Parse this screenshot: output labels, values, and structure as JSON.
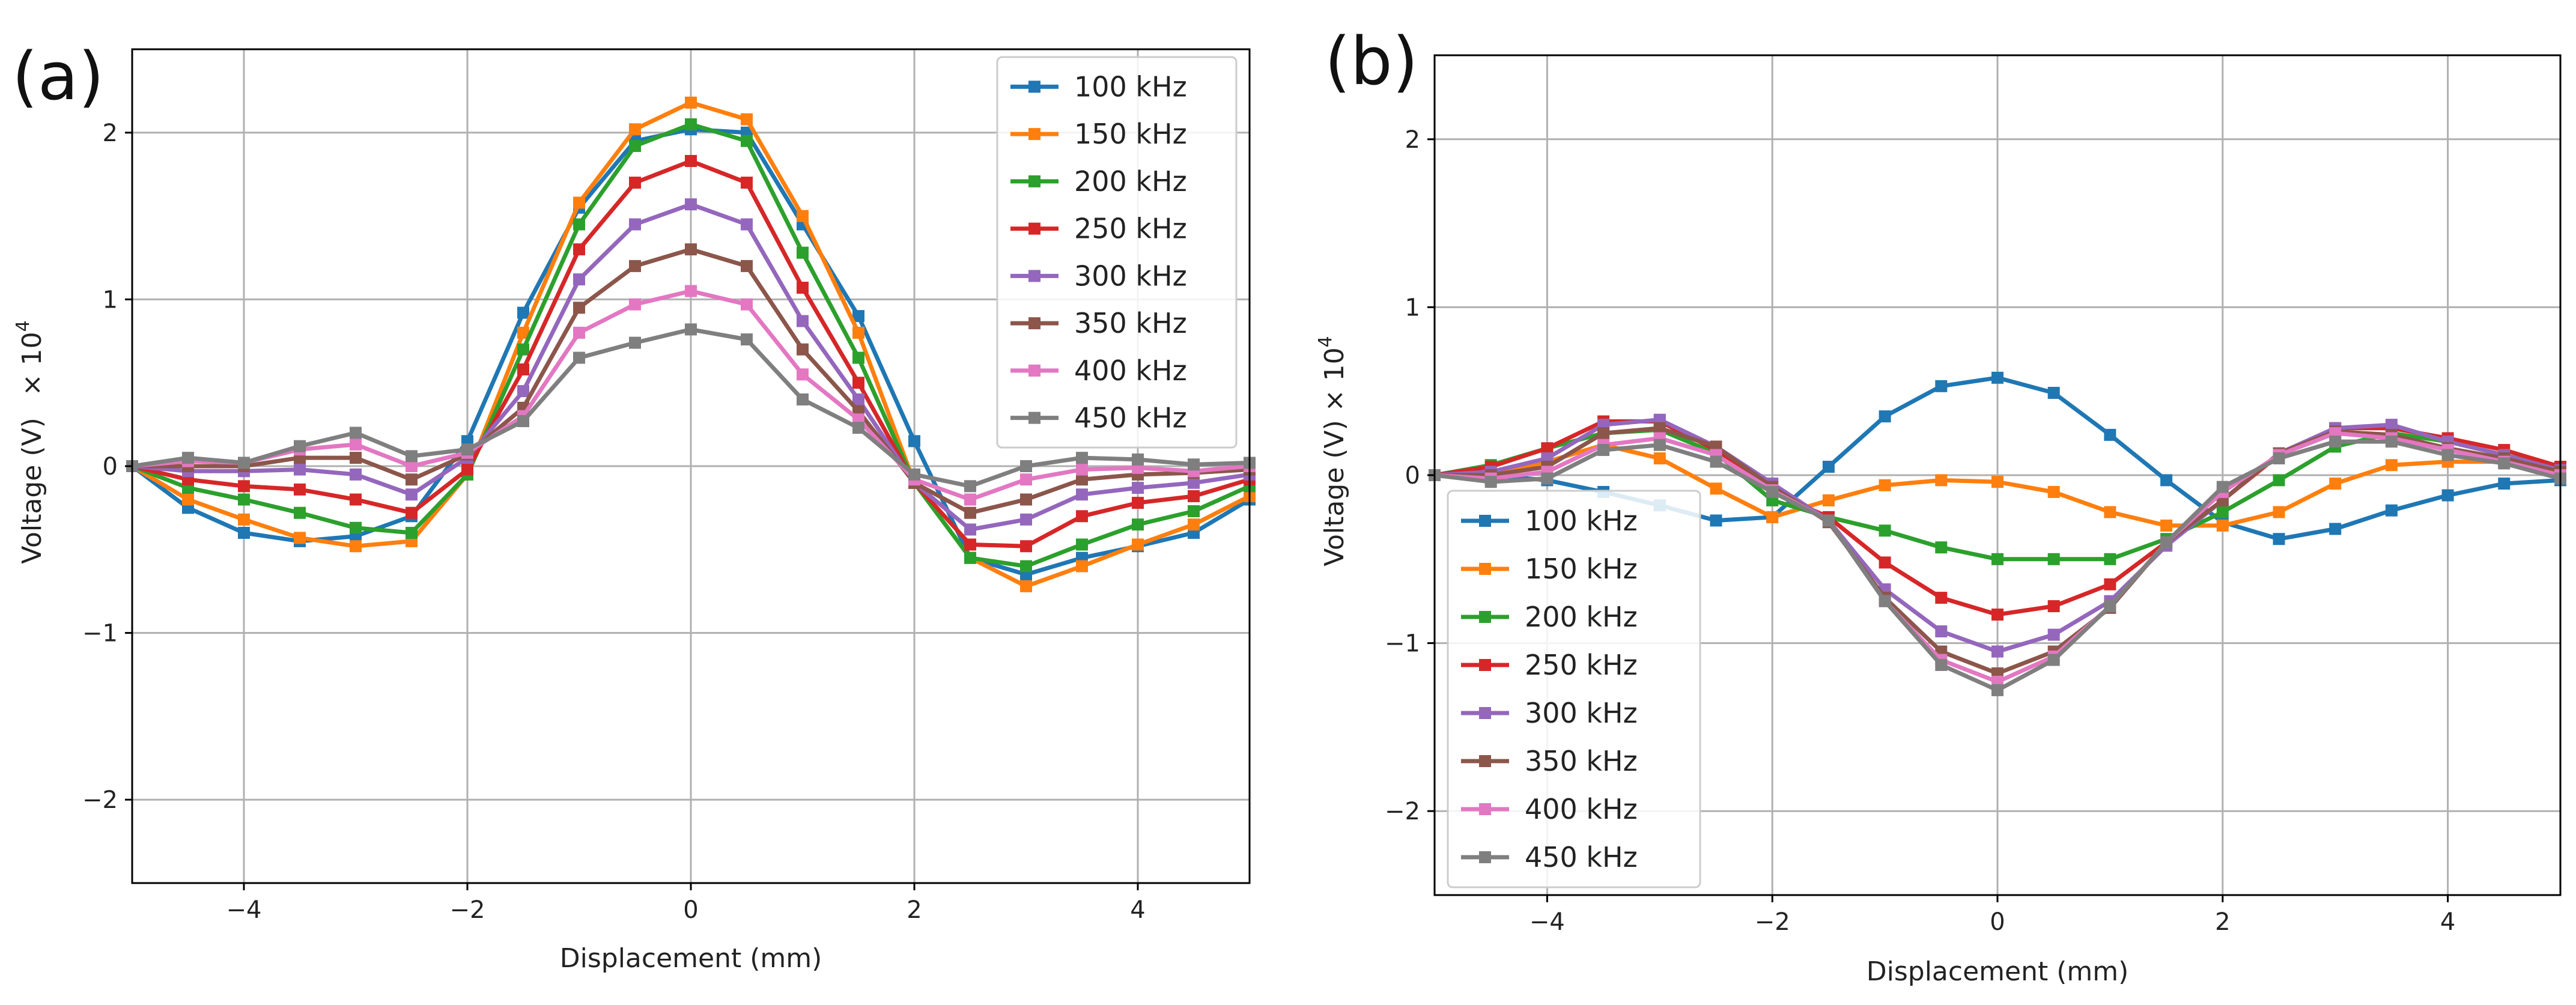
{
  "colors": {
    "100 kHz": "#1f77b4",
    "150 kHz": "#ff7f0e",
    "200 kHz": "#2ca02c",
    "250 kHz": "#d62728",
    "300 kHz": "#9467bd",
    "350 kHz": "#8c564b",
    "400 kHz": "#e377c2",
    "450 kHz": "#7f7f7f"
  },
  "chart_data": [
    {
      "type": "line",
      "panel_label": "(a)",
      "xlabel": "Displacement (mm)",
      "ylabel": "Voltage (V)",
      "ylabel_scale": "× 10",
      "ylabel_exp": "4",
      "xlim": [
        -5,
        5
      ],
      "ylim": [
        -2.5,
        2.5
      ],
      "xticks": [
        -4,
        -2,
        0,
        2,
        4
      ],
      "xtick_labels": [
        "−4",
        "−2",
        "0",
        "2",
        "4"
      ],
      "yticks": [
        -2,
        -1,
        0,
        1,
        2
      ],
      "ytick_labels": [
        "−2",
        "−1",
        "0",
        "1",
        "2"
      ],
      "grid": true,
      "legend_position": "top-right",
      "x": [
        -5,
        -4.5,
        -4,
        -3.5,
        -3,
        -2.5,
        -2,
        -1.5,
        -1,
        -0.5,
        0,
        0.5,
        1,
        1.5,
        2,
        2.5,
        3,
        3.5,
        4,
        4.5,
        5
      ],
      "series": [
        {
          "name": "100 kHz",
          "values": [
            0,
            -0.25,
            -0.4,
            -0.45,
            -0.42,
            -0.3,
            0.15,
            0.92,
            1.55,
            1.95,
            2.02,
            2.0,
            1.45,
            0.9,
            0.15,
            -0.55,
            -0.65,
            -0.55,
            -0.48,
            -0.4,
            -0.2
          ]
        },
        {
          "name": "150 kHz",
          "values": [
            0,
            -0.2,
            -0.32,
            -0.43,
            -0.48,
            -0.45,
            -0.05,
            0.8,
            1.58,
            2.02,
            2.18,
            2.08,
            1.5,
            0.8,
            -0.1,
            -0.55,
            -0.72,
            -0.6,
            -0.47,
            -0.35,
            -0.18
          ]
        },
        {
          "name": "200 kHz",
          "values": [
            0,
            -0.13,
            -0.2,
            -0.28,
            -0.37,
            -0.4,
            -0.05,
            0.7,
            1.45,
            1.92,
            2.05,
            1.95,
            1.28,
            0.65,
            -0.1,
            -0.55,
            -0.6,
            -0.47,
            -0.35,
            -0.27,
            -0.12
          ]
        },
        {
          "name": "250 kHz",
          "values": [
            0,
            -0.08,
            -0.12,
            -0.14,
            -0.2,
            -0.28,
            -0.02,
            0.58,
            1.3,
            1.7,
            1.83,
            1.7,
            1.07,
            0.5,
            -0.1,
            -0.47,
            -0.48,
            -0.3,
            -0.22,
            -0.18,
            -0.08
          ]
        },
        {
          "name": "300 kHz",
          "values": [
            0,
            -0.03,
            -0.03,
            -0.02,
            -0.05,
            -0.17,
            0.05,
            0.45,
            1.12,
            1.45,
            1.57,
            1.45,
            0.87,
            0.4,
            -0.1,
            -0.38,
            -0.32,
            -0.17,
            -0.13,
            -0.1,
            -0.05
          ]
        },
        {
          "name": "350 kHz",
          "values": [
            0,
            0.0,
            0.0,
            0.05,
            0.05,
            -0.08,
            0.07,
            0.35,
            0.95,
            1.2,
            1.3,
            1.2,
            0.7,
            0.33,
            -0.1,
            -0.28,
            -0.2,
            -0.08,
            -0.05,
            -0.04,
            -0.02
          ]
        },
        {
          "name": "400 kHz",
          "values": [
            0,
            0.03,
            0.02,
            0.1,
            0.13,
            0.0,
            0.08,
            0.3,
            0.8,
            0.97,
            1.05,
            0.97,
            0.55,
            0.28,
            -0.08,
            -0.2,
            -0.08,
            -0.02,
            -0.01,
            -0.03,
            0.0
          ]
        },
        {
          "name": "450 kHz",
          "values": [
            0,
            0.05,
            0.02,
            0.12,
            0.2,
            0.06,
            0.1,
            0.27,
            0.65,
            0.74,
            0.82,
            0.76,
            0.4,
            0.23,
            -0.05,
            -0.12,
            0.0,
            0.05,
            0.04,
            0.01,
            0.02
          ]
        }
      ]
    },
    {
      "type": "line",
      "panel_label": "(b)",
      "xlabel": "Displacement (mm)",
      "ylabel": "Voltage (V) × 10",
      "ylabel_exp": "4",
      "xlim": [
        -5,
        5
      ],
      "ylim": [
        -2.5,
        2.5
      ],
      "xticks": [
        -4,
        -2,
        0,
        2,
        4
      ],
      "xtick_labels": [
        "−4",
        "−2",
        "0",
        "2",
        "4"
      ],
      "yticks": [
        -2,
        -1,
        0,
        1,
        2
      ],
      "ytick_labels": [
        "−2",
        "−1",
        "0",
        "1",
        "2"
      ],
      "grid": true,
      "legend_position": "bottom-left",
      "x": [
        -5,
        -4.5,
        -4,
        -3.5,
        -3,
        -2.5,
        -2,
        -1.5,
        -1,
        -0.5,
        0,
        0.5,
        1,
        1.5,
        2,
        2.5,
        3,
        3.5,
        4,
        4.5,
        5
      ],
      "series": [
        {
          "name": "100 kHz",
          "values": [
            0,
            0.0,
            -0.03,
            -0.1,
            -0.18,
            -0.27,
            -0.25,
            0.05,
            0.35,
            0.53,
            0.58,
            0.49,
            0.24,
            -0.03,
            -0.28,
            -0.38,
            -0.32,
            -0.21,
            -0.12,
            -0.05,
            -0.03
          ]
        },
        {
          "name": "150 kHz",
          "values": [
            0,
            0.0,
            0.08,
            0.18,
            0.1,
            -0.08,
            -0.25,
            -0.15,
            -0.06,
            -0.03,
            -0.04,
            -0.1,
            -0.22,
            -0.3,
            -0.3,
            -0.22,
            -0.05,
            0.06,
            0.08,
            0.08,
            0.05
          ]
        },
        {
          "name": "200 kHz",
          "values": [
            0,
            0.06,
            0.16,
            0.25,
            0.27,
            0.13,
            -0.15,
            -0.25,
            -0.33,
            -0.43,
            -0.5,
            -0.5,
            -0.5,
            -0.38,
            -0.22,
            -0.03,
            0.17,
            0.25,
            0.2,
            0.12,
            0.04
          ]
        },
        {
          "name": "250 kHz",
          "values": [
            0,
            0.05,
            0.16,
            0.32,
            0.32,
            0.15,
            -0.1,
            -0.25,
            -0.52,
            -0.73,
            -0.83,
            -0.78,
            -0.65,
            -0.4,
            -0.15,
            0.12,
            0.28,
            0.28,
            0.22,
            0.15,
            0.05
          ]
        },
        {
          "name": "300 kHz",
          "values": [
            0,
            0.02,
            0.1,
            0.3,
            0.33,
            0.17,
            -0.05,
            -0.27,
            -0.68,
            -0.93,
            -1.05,
            -0.95,
            -0.75,
            -0.42,
            -0.15,
            0.13,
            0.28,
            0.3,
            0.2,
            0.12,
            0.03
          ]
        },
        {
          "name": "350 kHz",
          "values": [
            0,
            0.0,
            0.05,
            0.25,
            0.28,
            0.17,
            -0.07,
            -0.28,
            -0.73,
            -1.05,
            -1.18,
            -1.05,
            -0.79,
            -0.4,
            -0.15,
            0.13,
            0.26,
            0.24,
            0.16,
            0.1,
            0.02
          ]
        },
        {
          "name": "400 kHz",
          "values": [
            0,
            -0.02,
            0.02,
            0.18,
            0.22,
            0.12,
            -0.09,
            -0.27,
            -0.75,
            -1.1,
            -1.23,
            -1.08,
            -0.78,
            -0.4,
            -0.1,
            0.12,
            0.25,
            0.22,
            0.15,
            0.08,
            0.0
          ]
        },
        {
          "name": "450 kHz",
          "values": [
            0,
            -0.04,
            -0.02,
            0.15,
            0.18,
            0.08,
            -0.1,
            -0.27,
            -0.75,
            -1.13,
            -1.28,
            -1.1,
            -0.78,
            -0.4,
            -0.07,
            0.1,
            0.2,
            0.2,
            0.12,
            0.07,
            -0.02
          ]
        }
      ]
    }
  ]
}
